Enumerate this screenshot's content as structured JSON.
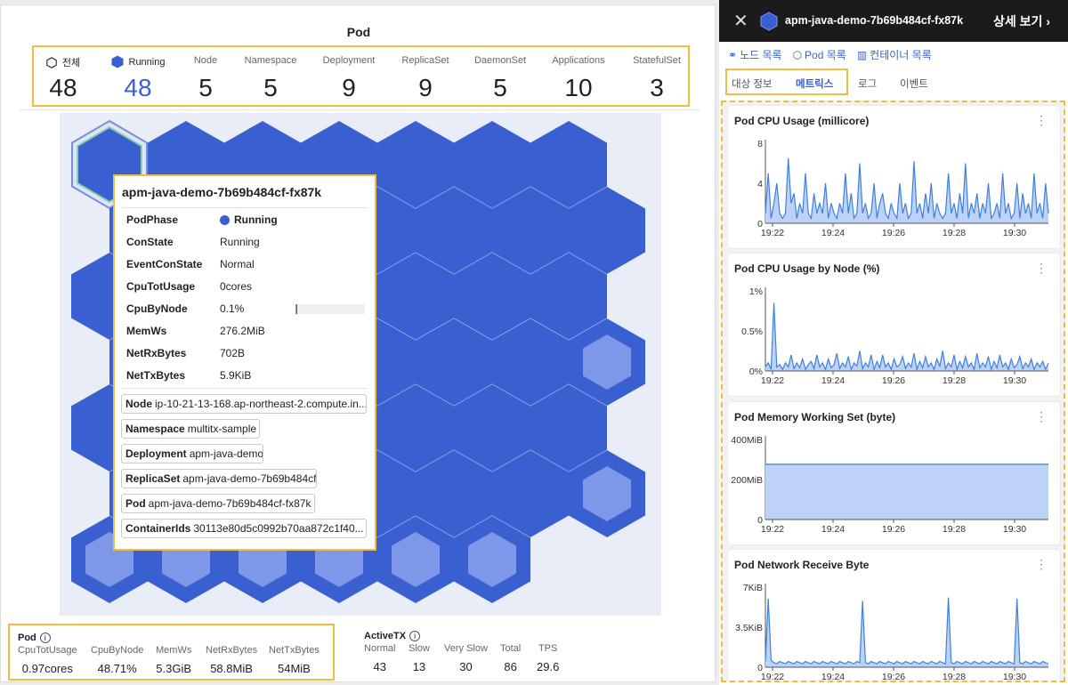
{
  "left": {
    "title": "Pod",
    "summary": [
      {
        "label": "전체",
        "value": "48",
        "icon": "hexagon-outline-icon"
      },
      {
        "label": "Running",
        "value": "48",
        "icon": "hexagon-filled-icon"
      },
      {
        "label": "Node",
        "value": "5"
      },
      {
        "label": "Namespace",
        "value": "5"
      },
      {
        "label": "Deployment",
        "value": "9"
      },
      {
        "label": "ReplicaSet",
        "value": "9"
      },
      {
        "label": "DaemonSet",
        "value": "5"
      },
      {
        "label": "Applications",
        "value": "10"
      },
      {
        "label": "StatefulSet",
        "value": "3"
      }
    ],
    "tooltip": {
      "title": "apm-java-demo-7b69b484cf-fx87k",
      "rows": [
        {
          "key": "PodPhase",
          "value": "Running"
        },
        {
          "key": "ConState",
          "value": "Running"
        },
        {
          "key": "EventConState",
          "value": "Normal"
        },
        {
          "key": "CpuTotUsage",
          "value": "0cores"
        },
        {
          "key": "CpuByNode",
          "value": "0.1%"
        },
        {
          "key": "MemWs",
          "value": "276.2MiB"
        },
        {
          "key": "NetRxBytes",
          "value": "702B"
        },
        {
          "key": "NetTxBytes",
          "value": "5.9KiB"
        }
      ],
      "cpu_by_node_fraction": 0.001,
      "tags": [
        {
          "key": "Node",
          "value": "ip-10-21-13-168.ap-northeast-2.compute.in..."
        },
        {
          "key": "Namespace",
          "value": "multitx-sample"
        },
        {
          "key": "Deployment",
          "value": "apm-java-demo"
        },
        {
          "key": "ReplicaSet",
          "value": "apm-java-demo-7b69b484cf"
        },
        {
          "key": "Pod",
          "value": "apm-java-demo-7b69b484cf-fx87k"
        },
        {
          "key": "ContainerIds",
          "value": "30113e80d5c0992b70aa872c1f40..."
        }
      ]
    },
    "pod_footer": {
      "title": "Pod",
      "items": [
        {
          "label": "CpuTotUsage",
          "value": "0.97cores"
        },
        {
          "label": "CpuByNode",
          "value": "48.71%"
        },
        {
          "label": "MemWs",
          "value": "5.3GiB"
        },
        {
          "label": "NetRxBytes",
          "value": "58.8MiB"
        },
        {
          "label": "NetTxBytes",
          "value": "54MiB"
        }
      ]
    },
    "activetx_footer": {
      "title": "ActiveTX",
      "items": [
        {
          "label": "Normal",
          "value": "43"
        },
        {
          "label": "Slow",
          "value": "13"
        },
        {
          "label": "Very Slow",
          "value": "30"
        },
        {
          "label": "Total",
          "value": "86"
        },
        {
          "label": "TPS",
          "value": "29.6"
        }
      ]
    },
    "colors": {
      "hex_fill": "#3a5fd0",
      "hex_light": "#7f97e8",
      "highlight": "#f0be3c"
    }
  },
  "right": {
    "header": {
      "pod_name": "apm-java-demo-7b69b484cf-fx87k",
      "detail_label": "상세 보기"
    },
    "links": [
      "노드 목록",
      "Pod 목록",
      "컨테이너 목록"
    ],
    "tabs": [
      "대상 정보",
      "메트릭스",
      "로그",
      "이벤트"
    ],
    "active_tab": "메트릭스"
  },
  "chart_data": [
    {
      "type": "area",
      "title": "Pod CPU Usage (millicore)",
      "ylim": [
        0,
        8
      ],
      "yticks": [
        "0",
        "4",
        "8"
      ],
      "xticks": [
        "19:22",
        "19:24",
        "19:26",
        "19:28",
        "19:30"
      ],
      "xlim": [
        0,
        100
      ],
      "values": [
        1,
        5,
        0.5,
        2,
        4,
        1,
        0.5,
        1,
        6.5,
        2,
        3,
        0.5,
        2,
        1,
        5,
        1,
        0.5,
        3,
        1,
        2,
        1,
        4,
        0.5,
        2,
        1,
        0.5,
        2,
        1,
        5,
        1,
        3,
        0.5,
        1,
        6,
        1,
        2,
        0.5,
        1,
        4,
        0.5,
        2,
        3,
        1,
        0.5,
        2,
        1,
        0.5,
        4,
        1,
        2,
        0.5,
        1,
        6.2,
        1,
        2,
        0.5,
        3,
        1,
        4,
        0.5,
        2,
        1,
        0.5,
        1,
        5,
        1,
        2,
        0.5,
        3,
        1,
        6,
        0.5,
        2,
        1,
        3,
        0.5,
        2,
        1,
        4,
        0.5,
        1,
        2,
        0.5,
        5,
        1,
        2,
        0.5,
        1,
        4,
        0.5,
        3,
        1,
        2,
        0.5,
        5,
        1,
        2,
        0.5,
        4,
        1
      ]
    },
    {
      "type": "area",
      "title": "Pod CPU Usage by Node (%)",
      "ylim": [
        0,
        1
      ],
      "yticks": [
        "0%",
        "0.5%",
        "1%"
      ],
      "xticks": [
        "19:22",
        "19:24",
        "19:26",
        "19:28",
        "19:30"
      ],
      "xlim": [
        0,
        100
      ],
      "values": [
        0.05,
        0.1,
        0.02,
        0.85,
        0.05,
        0.08,
        0.02,
        0.1,
        0.05,
        0.2,
        0.03,
        0.1,
        0.04,
        0.15,
        0.02,
        0.08,
        0.12,
        0.03,
        0.2,
        0.05,
        0.1,
        0.02,
        0.15,
        0.04,
        0.08,
        0.22,
        0.03,
        0.1,
        0.05,
        0.18,
        0.02,
        0.1,
        0.06,
        0.25,
        0.03,
        0.1,
        0.05,
        0.2,
        0.02,
        0.12,
        0.04,
        0.2,
        0.05,
        0.1,
        0.02,
        0.15,
        0.05,
        0.08,
        0.18,
        0.03,
        0.1,
        0.05,
        0.22,
        0.02,
        0.12,
        0.04,
        0.18,
        0.05,
        0.1,
        0.02,
        0.15,
        0.06,
        0.25,
        0.03,
        0.1,
        0.05,
        0.2,
        0.02,
        0.12,
        0.04,
        0.18,
        0.05,
        0.1,
        0.02,
        0.22,
        0.04,
        0.1,
        0.05,
        0.18,
        0.02,
        0.12,
        0.04,
        0.2,
        0.05,
        0.1,
        0.02,
        0.15,
        0.04,
        0.08,
        0.18,
        0.03,
        0.1,
        0.05,
        0.15,
        0.02,
        0.1,
        0.05,
        0.12,
        0.02,
        0.1
      ]
    },
    {
      "type": "area",
      "title": "Pod Memory Working Set (byte)",
      "ylim": [
        0,
        400
      ],
      "yticks": [
        "0",
        "200MiB",
        "400MiB"
      ],
      "xticks": [
        "19:22",
        "19:24",
        "19:26",
        "19:28",
        "19:30"
      ],
      "xlim": [
        0,
        100
      ],
      "values": [
        276,
        276,
        276,
        276,
        276,
        276,
        276,
        276,
        276,
        276,
        276
      ]
    },
    {
      "type": "area",
      "title": "Pod Network Receive Byte",
      "ylim": [
        0,
        7
      ],
      "yticks": [
        "0",
        "3.5KiB",
        "7KiB"
      ],
      "xticks": [
        "19:22",
        "19:24",
        "19:26",
        "19:28",
        "19:30"
      ],
      "xlim": [
        0,
        100
      ],
      "values": [
        0.5,
        6,
        0.6,
        0.4,
        0.3,
        0.5,
        0.4,
        0.3,
        0.5,
        0.4,
        0.3,
        0.5,
        0.4,
        0.3,
        0.5,
        0.4,
        0.3,
        0.5,
        0.4,
        0.3,
        0.5,
        0.4,
        0.3,
        0.5,
        0.4,
        0.3,
        0.5,
        0.4,
        0.3,
        0.5,
        0.4,
        0.3,
        0.5,
        0.4,
        5.8,
        0.4,
        0.3,
        0.5,
        0.4,
        0.3,
        0.5,
        0.4,
        0.3,
        0.5,
        0.4,
        0.3,
        0.5,
        0.4,
        0.3,
        0.5,
        0.4,
        0.3,
        0.5,
        0.4,
        0.3,
        0.5,
        0.4,
        0.3,
        0.5,
        0.4,
        0.3,
        0.5,
        0.4,
        0.3,
        6.1,
        0.4,
        0.3,
        0.5,
        0.4,
        0.3,
        0.5,
        0.4,
        0.3,
        0.5,
        0.4,
        0.3,
        0.5,
        0.4,
        0.3,
        0.5,
        0.4,
        0.3,
        0.5,
        0.4,
        0.3,
        0.5,
        0.4,
        0.3,
        6.0,
        0.4,
        0.3,
        0.5,
        0.4,
        0.3,
        0.5,
        0.4,
        0.3,
        0.5,
        0.4,
        0.3
      ]
    }
  ]
}
